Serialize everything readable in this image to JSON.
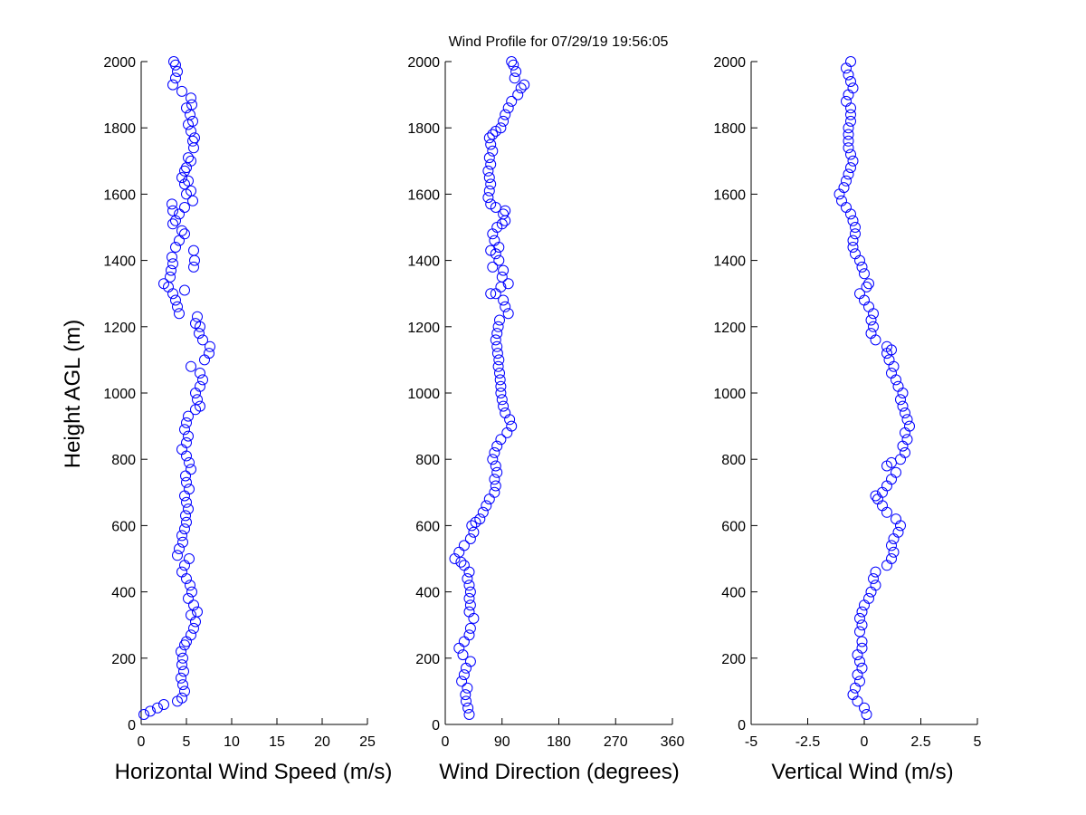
{
  "figure": {
    "title": "Wind Profile for  07/29/19 19:56:05",
    "ylabel": "Height AGL (m)"
  },
  "colors": {
    "marker": "#0000ff",
    "axis": "#000000",
    "background": "#ffffff"
  },
  "chart_data": [
    {
      "type": "scatter",
      "xlabel": "Horizontal Wind Speed (m/s)",
      "ylabel": "Height AGL (m)",
      "xlim": [
        0,
        25
      ],
      "ylim": [
        0,
        2000
      ],
      "xticks": [
        0,
        5,
        10,
        15,
        20,
        25
      ],
      "xtick_labels": [
        "0",
        "5",
        "10",
        "15",
        "20",
        "25"
      ],
      "yticks": [
        0,
        200,
        400,
        600,
        800,
        1000,
        1200,
        1400,
        1600,
        1800,
        2000
      ],
      "grid": false,
      "marker": "open-circle",
      "points": [
        [
          0.3,
          30
        ],
        [
          1.0,
          40
        ],
        [
          1.8,
          50
        ],
        [
          2.5,
          60
        ],
        [
          4.0,
          70
        ],
        [
          4.5,
          80
        ],
        [
          4.8,
          100
        ],
        [
          4.6,
          120
        ],
        [
          4.4,
          140
        ],
        [
          4.7,
          160
        ],
        [
          4.5,
          180
        ],
        [
          4.6,
          200
        ],
        [
          4.4,
          220
        ],
        [
          4.8,
          240
        ],
        [
          5.0,
          250
        ],
        [
          5.5,
          270
        ],
        [
          5.8,
          290
        ],
        [
          6.0,
          310
        ],
        [
          5.5,
          330
        ],
        [
          6.2,
          340
        ],
        [
          5.8,
          360
        ],
        [
          5.2,
          380
        ],
        [
          5.6,
          400
        ],
        [
          5.4,
          420
        ],
        [
          5.0,
          440
        ],
        [
          4.5,
          460
        ],
        [
          4.8,
          480
        ],
        [
          5.3,
          500
        ],
        [
          4.0,
          510
        ],
        [
          4.2,
          530
        ],
        [
          4.6,
          550
        ],
        [
          4.5,
          570
        ],
        [
          4.8,
          590
        ],
        [
          5.0,
          610
        ],
        [
          4.9,
          630
        ],
        [
          5.2,
          650
        ],
        [
          5.0,
          670
        ],
        [
          4.8,
          690
        ],
        [
          5.3,
          710
        ],
        [
          5.0,
          730
        ],
        [
          4.9,
          750
        ],
        [
          5.5,
          770
        ],
        [
          5.3,
          790
        ],
        [
          5.0,
          810
        ],
        [
          4.5,
          830
        ],
        [
          5.0,
          850
        ],
        [
          5.2,
          870
        ],
        [
          4.8,
          890
        ],
        [
          5.0,
          910
        ],
        [
          5.2,
          930
        ],
        [
          6.0,
          950
        ],
        [
          6.5,
          960
        ],
        [
          6.2,
          980
        ],
        [
          6.0,
          1000
        ],
        [
          6.5,
          1020
        ],
        [
          6.8,
          1040
        ],
        [
          6.5,
          1060
        ],
        [
          5.5,
          1080
        ],
        [
          7.0,
          1100
        ],
        [
          7.5,
          1120
        ],
        [
          7.6,
          1140
        ],
        [
          6.8,
          1160
        ],
        [
          6.4,
          1180
        ],
        [
          6.5,
          1200
        ],
        [
          6.0,
          1210
        ],
        [
          6.2,
          1230
        ],
        [
          4.2,
          1240
        ],
        [
          4.0,
          1260
        ],
        [
          3.8,
          1280
        ],
        [
          3.5,
          1300
        ],
        [
          4.8,
          1310
        ],
        [
          3.0,
          1320
        ],
        [
          2.5,
          1330
        ],
        [
          3.2,
          1350
        ],
        [
          3.3,
          1370
        ],
        [
          5.8,
          1380
        ],
        [
          3.5,
          1390
        ],
        [
          5.9,
          1400
        ],
        [
          3.4,
          1410
        ],
        [
          5.8,
          1430
        ],
        [
          3.8,
          1440
        ],
        [
          4.2,
          1460
        ],
        [
          4.8,
          1480
        ],
        [
          4.5,
          1490
        ],
        [
          3.5,
          1510
        ],
        [
          3.8,
          1520
        ],
        [
          4.2,
          1540
        ],
        [
          3.5,
          1550
        ],
        [
          4.8,
          1560
        ],
        [
          3.4,
          1570
        ],
        [
          5.7,
          1580
        ],
        [
          5.0,
          1600
        ],
        [
          5.5,
          1610
        ],
        [
          4.8,
          1630
        ],
        [
          5.2,
          1640
        ],
        [
          4.5,
          1650
        ],
        [
          4.8,
          1670
        ],
        [
          5.0,
          1680
        ],
        [
          5.5,
          1700
        ],
        [
          5.2,
          1710
        ],
        [
          5.8,
          1740
        ],
        [
          5.7,
          1760
        ],
        [
          5.9,
          1770
        ],
        [
          5.5,
          1790
        ],
        [
          5.2,
          1810
        ],
        [
          5.7,
          1820
        ],
        [
          5.4,
          1840
        ],
        [
          5.0,
          1860
        ],
        [
          5.6,
          1870
        ],
        [
          5.5,
          1890
        ],
        [
          4.5,
          1910
        ],
        [
          3.5,
          1930
        ],
        [
          3.8,
          1950
        ],
        [
          4.0,
          1970
        ],
        [
          3.8,
          1990
        ],
        [
          3.6,
          2000
        ]
      ]
    },
    {
      "type": "scatter",
      "xlabel": "Wind Direction (degrees)",
      "ylabel": "",
      "xlim": [
        0,
        360
      ],
      "ylim": [
        0,
        2000
      ],
      "xticks": [
        0,
        90,
        180,
        270,
        360
      ],
      "xtick_labels": [
        "0",
        "90",
        "180",
        "270",
        "360"
      ],
      "yticks": [
        0,
        200,
        400,
        600,
        800,
        1000,
        1200,
        1400,
        1600,
        1800,
        2000
      ],
      "grid": false,
      "marker": "open-circle",
      "points": [
        [
          38,
          30
        ],
        [
          36,
          50
        ],
        [
          33,
          70
        ],
        [
          32,
          90
        ],
        [
          35,
          110
        ],
        [
          26,
          130
        ],
        [
          30,
          150
        ],
        [
          33,
          170
        ],
        [
          40,
          190
        ],
        [
          28,
          210
        ],
        [
          22,
          230
        ],
        [
          30,
          250
        ],
        [
          38,
          270
        ],
        [
          40,
          290
        ],
        [
          45,
          320
        ],
        [
          38,
          340
        ],
        [
          40,
          360
        ],
        [
          38,
          380
        ],
        [
          40,
          400
        ],
        [
          38,
          420
        ],
        [
          35,
          440
        ],
        [
          38,
          460
        ],
        [
          30,
          480
        ],
        [
          25,
          490
        ],
        [
          15,
          500
        ],
        [
          22,
          520
        ],
        [
          30,
          540
        ],
        [
          40,
          560
        ],
        [
          45,
          580
        ],
        [
          42,
          600
        ],
        [
          48,
          610
        ],
        [
          55,
          620
        ],
        [
          60,
          640
        ],
        [
          65,
          660
        ],
        [
          70,
          680
        ],
        [
          78,
          700
        ],
        [
          80,
          720
        ],
        [
          78,
          740
        ],
        [
          82,
          760
        ],
        [
          80,
          780
        ],
        [
          75,
          800
        ],
        [
          78,
          820
        ],
        [
          82,
          840
        ],
        [
          88,
          860
        ],
        [
          98,
          880
        ],
        [
          105,
          900
        ],
        [
          102,
          920
        ],
        [
          95,
          940
        ],
        [
          92,
          960
        ],
        [
          90,
          980
        ],
        [
          88,
          1000
        ],
        [
          88,
          1020
        ],
        [
          87,
          1040
        ],
        [
          86,
          1060
        ],
        [
          84,
          1080
        ],
        [
          85,
          1100
        ],
        [
          83,
          1120
        ],
        [
          82,
          1140
        ],
        [
          80,
          1160
        ],
        [
          82,
          1180
        ],
        [
          84,
          1200
        ],
        [
          86,
          1220
        ],
        [
          100,
          1240
        ],
        [
          95,
          1260
        ],
        [
          92,
          1280
        ],
        [
          80,
          1300
        ],
        [
          72,
          1300
        ],
        [
          88,
          1320
        ],
        [
          100,
          1330
        ],
        [
          90,
          1350
        ],
        [
          92,
          1370
        ],
        [
          75,
          1380
        ],
        [
          85,
          1400
        ],
        [
          80,
          1420
        ],
        [
          72,
          1430
        ],
        [
          85,
          1440
        ],
        [
          78,
          1460
        ],
        [
          75,
          1480
        ],
        [
          82,
          1500
        ],
        [
          90,
          1510
        ],
        [
          95,
          1520
        ],
        [
          92,
          1540
        ],
        [
          95,
          1550
        ],
        [
          80,
          1560
        ],
        [
          72,
          1570
        ],
        [
          68,
          1590
        ],
        [
          70,
          1610
        ],
        [
          72,
          1630
        ],
        [
          70,
          1650
        ],
        [
          68,
          1670
        ],
        [
          72,
          1690
        ],
        [
          70,
          1710
        ],
        [
          75,
          1730
        ],
        [
          72,
          1750
        ],
        [
          70,
          1770
        ],
        [
          75,
          1780
        ],
        [
          80,
          1790
        ],
        [
          88,
          1800
        ],
        [
          92,
          1820
        ],
        [
          95,
          1840
        ],
        [
          100,
          1860
        ],
        [
          105,
          1880
        ],
        [
          115,
          1900
        ],
        [
          120,
          1920
        ],
        [
          125,
          1930
        ],
        [
          110,
          1950
        ],
        [
          112,
          1970
        ],
        [
          108,
          1990
        ],
        [
          105,
          2000
        ]
      ]
    },
    {
      "type": "scatter",
      "xlabel": "Vertical Wind (m/s)",
      "ylabel": "",
      "xlim": [
        -5,
        5
      ],
      "ylim": [
        0,
        2000
      ],
      "xticks": [
        -5,
        -2.5,
        0,
        2.5,
        5
      ],
      "xtick_labels": [
        "-5",
        "-2.5",
        "0",
        "2.5",
        "5"
      ],
      "yticks": [
        0,
        200,
        400,
        600,
        800,
        1000,
        1200,
        1400,
        1600,
        1800,
        2000
      ],
      "grid": false,
      "marker": "open-circle",
      "points": [
        [
          0.1,
          30
        ],
        [
          0.0,
          50
        ],
        [
          -0.3,
          70
        ],
        [
          -0.5,
          90
        ],
        [
          -0.4,
          110
        ],
        [
          -0.2,
          130
        ],
        [
          -0.3,
          150
        ],
        [
          -0.1,
          170
        ],
        [
          -0.2,
          190
        ],
        [
          -0.3,
          210
        ],
        [
          -0.1,
          230
        ],
        [
          -0.1,
          250
        ],
        [
          -0.2,
          280
        ],
        [
          -0.1,
          300
        ],
        [
          -0.2,
          320
        ],
        [
          -0.1,
          340
        ],
        [
          0.0,
          360
        ],
        [
          0.2,
          380
        ],
        [
          0.3,
          400
        ],
        [
          0.5,
          420
        ],
        [
          0.4,
          440
        ],
        [
          0.5,
          460
        ],
        [
          1.0,
          480
        ],
        [
          1.2,
          500
        ],
        [
          1.3,
          520
        ],
        [
          1.2,
          540
        ],
        [
          1.3,
          560
        ],
        [
          1.5,
          580
        ],
        [
          1.6,
          600
        ],
        [
          1.4,
          620
        ],
        [
          1.0,
          640
        ],
        [
          0.8,
          660
        ],
        [
          0.6,
          680
        ],
        [
          0.5,
          690
        ],
        [
          0.8,
          700
        ],
        [
          1.0,
          720
        ],
        [
          1.2,
          740
        ],
        [
          1.4,
          760
        ],
        [
          1.0,
          780
        ],
        [
          1.2,
          790
        ],
        [
          1.6,
          800
        ],
        [
          1.8,
          820
        ],
        [
          1.7,
          840
        ],
        [
          1.9,
          860
        ],
        [
          1.8,
          880
        ],
        [
          2.0,
          900
        ],
        [
          1.9,
          920
        ],
        [
          1.8,
          940
        ],
        [
          1.7,
          960
        ],
        [
          1.6,
          980
        ],
        [
          1.7,
          1000
        ],
        [
          1.5,
          1020
        ],
        [
          1.4,
          1040
        ],
        [
          1.2,
          1060
        ],
        [
          1.3,
          1080
        ],
        [
          1.1,
          1100
        ],
        [
          1.0,
          1120
        ],
        [
          1.2,
          1130
        ],
        [
          1.0,
          1140
        ],
        [
          0.5,
          1160
        ],
        [
          0.3,
          1180
        ],
        [
          0.4,
          1200
        ],
        [
          0.3,
          1220
        ],
        [
          0.4,
          1240
        ],
        [
          0.2,
          1260
        ],
        [
          0.0,
          1280
        ],
        [
          -0.2,
          1300
        ],
        [
          0.1,
          1320
        ],
        [
          0.2,
          1330
        ],
        [
          0.0,
          1360
        ],
        [
          -0.1,
          1380
        ],
        [
          -0.2,
          1400
        ],
        [
          -0.4,
          1420
        ],
        [
          -0.5,
          1440
        ],
        [
          -0.5,
          1460
        ],
        [
          -0.4,
          1480
        ],
        [
          -0.4,
          1500
        ],
        [
          -0.5,
          1520
        ],
        [
          -0.6,
          1540
        ],
        [
          -0.8,
          1560
        ],
        [
          -1.0,
          1580
        ],
        [
          -1.1,
          1600
        ],
        [
          -0.9,
          1620
        ],
        [
          -0.8,
          1640
        ],
        [
          -0.7,
          1660
        ],
        [
          -0.6,
          1680
        ],
        [
          -0.5,
          1700
        ],
        [
          -0.6,
          1720
        ],
        [
          -0.7,
          1740
        ],
        [
          -0.7,
          1760
        ],
        [
          -0.7,
          1780
        ],
        [
          -0.7,
          1800
        ],
        [
          -0.6,
          1820
        ],
        [
          -0.6,
          1840
        ],
        [
          -0.6,
          1860
        ],
        [
          -0.8,
          1880
        ],
        [
          -0.7,
          1900
        ],
        [
          -0.5,
          1920
        ],
        [
          -0.6,
          1940
        ],
        [
          -0.7,
          1960
        ],
        [
          -0.8,
          1980
        ],
        [
          -0.6,
          2000
        ]
      ]
    }
  ]
}
